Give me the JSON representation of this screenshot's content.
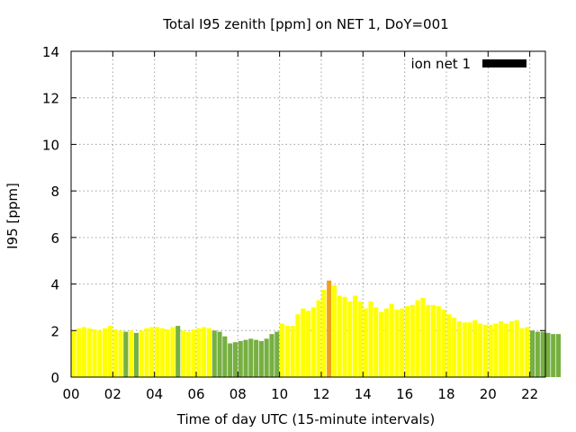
{
  "chart_data": {
    "type": "bar",
    "title": "Total I95 zenith [ppm] on NET 1, DoY=001",
    "xlabel": "Time of day UTC (15-minute intervals)",
    "ylabel": "I95 [ppm]",
    "xlim": [
      0,
      22.75
    ],
    "ylim": [
      0,
      14
    ],
    "x_ticks": [
      "00",
      "02",
      "04",
      "06",
      "08",
      "10",
      "12",
      "14",
      "16",
      "18",
      "20",
      "22"
    ],
    "y_ticks": [
      "0",
      "2",
      "4",
      "6",
      "8",
      "10",
      "12",
      "14"
    ],
    "grid": true,
    "legend_position": "top-right",
    "legend": [
      {
        "label": "ion net 1",
        "color": "#000000"
      }
    ],
    "interval_hours": 0.25,
    "first_bar_time": 0.125,
    "bar_width_hours": 0.22,
    "values": [
      2.0,
      2.1,
      2.15,
      2.1,
      2.05,
      2.0,
      2.1,
      2.2,
      2.05,
      2.0,
      1.95,
      2.0,
      1.9,
      2.0,
      2.1,
      2.15,
      2.15,
      2.1,
      2.05,
      2.15,
      2.2,
      2.0,
      1.95,
      2.05,
      2.1,
      2.15,
      2.1,
      2.0,
      1.95,
      1.75,
      1.45,
      1.5,
      1.55,
      1.6,
      1.65,
      1.6,
      1.55,
      1.65,
      1.85,
      1.95,
      2.3,
      2.2,
      2.2,
      2.7,
      2.95,
      2.85,
      3.0,
      3.3,
      3.75,
      4.15,
      3.95,
      3.5,
      3.45,
      3.25,
      3.5,
      3.25,
      2.95,
      3.25,
      3.0,
      2.8,
      2.95,
      3.15,
      2.9,
      2.95,
      3.05,
      3.1,
      3.3,
      3.4,
      3.1,
      3.1,
      3.05,
      2.9,
      2.7,
      2.55,
      2.4,
      2.35,
      2.35,
      2.45,
      2.3,
      2.25,
      2.25,
      2.3,
      2.4,
      2.3,
      2.4,
      2.45,
      2.1,
      2.15,
      2.0,
      1.95,
      1.95,
      1.9,
      1.85,
      1.85
    ],
    "colors": [
      "#ffff00",
      "#ffff00",
      "#ffff00",
      "#ffff00",
      "#ffff00",
      "#ffff00",
      "#ffff00",
      "#ffff00",
      "#ffff00",
      "#ffff00",
      "#76b041",
      "#ffff00",
      "#76b041",
      "#ffff00",
      "#ffff00",
      "#ffff00",
      "#ffff00",
      "#ffff00",
      "#ffff00",
      "#ffff00",
      "#76b041",
      "#ffff00",
      "#ffff00",
      "#ffff00",
      "#ffff00",
      "#ffff00",
      "#ffff00",
      "#76b041",
      "#76b041",
      "#76b041",
      "#76b041",
      "#76b041",
      "#76b041",
      "#76b041",
      "#76b041",
      "#76b041",
      "#76b041",
      "#76b041",
      "#76b041",
      "#76b041",
      "#ffff00",
      "#ffff00",
      "#ffff00",
      "#ffff00",
      "#ffff00",
      "#ffff00",
      "#ffff00",
      "#ffff00",
      "#ffff00",
      "#f0a020",
      "#ffff00",
      "#ffff00",
      "#ffff00",
      "#ffff00",
      "#ffff00",
      "#ffff00",
      "#ffff00",
      "#ffff00",
      "#ffff00",
      "#ffff00",
      "#ffff00",
      "#ffff00",
      "#ffff00",
      "#ffff00",
      "#ffff00",
      "#ffff00",
      "#ffff00",
      "#ffff00",
      "#ffff00",
      "#ffff00",
      "#ffff00",
      "#ffff00",
      "#ffff00",
      "#ffff00",
      "#ffff00",
      "#ffff00",
      "#ffff00",
      "#ffff00",
      "#ffff00",
      "#ffff00",
      "#ffff00",
      "#ffff00",
      "#ffff00",
      "#ffff00",
      "#ffff00",
      "#ffff00",
      "#ffff00",
      "#ffff00",
      "#76b041",
      "#76b041",
      "#76b041",
      "#76b041",
      "#76b041",
      "#76b041"
    ]
  }
}
